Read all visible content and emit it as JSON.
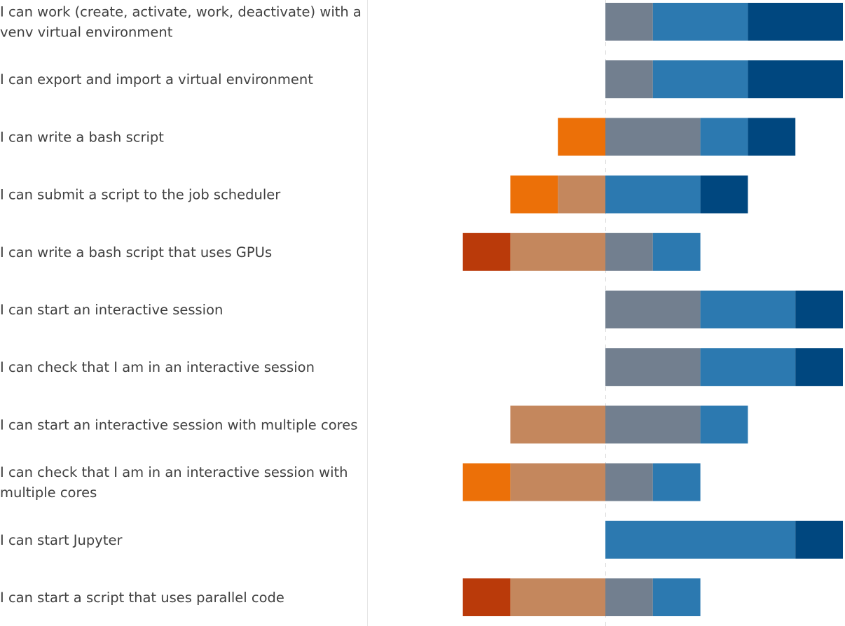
{
  "chart_data": {
    "type": "bar",
    "orientation": "horizontal",
    "stacking": "diverging",
    "categories": [
      [
        "I can work (create, activate, work, deactivate) with a",
        "venv virtual environment"
      ],
      [
        "I can export and import a virtual environment"
      ],
      [
        "I can write a bash script"
      ],
      [
        "I can submit a script to the job scheduler"
      ],
      [
        "I can write a bash script that uses GPUs"
      ],
      [
        "I can start an interactive session"
      ],
      [
        "I can check that I am in an interactive session"
      ],
      [
        "I can start an interactive session with multiple cores"
      ],
      [
        "I can check that I am in an interactive session with",
        "multiple cores"
      ],
      [
        "I can start Jupyter"
      ],
      [
        "I can start a script that uses parallel code"
      ]
    ],
    "negative_series": [
      {
        "color": "#BA3A0A",
        "values": [
          0,
          0,
          0,
          0,
          1,
          0,
          0,
          0,
          0,
          0,
          1
        ]
      },
      {
        "color": "#EC7008",
        "values": [
          0,
          0,
          1,
          1,
          0,
          0,
          0,
          0,
          1,
          0,
          0
        ]
      },
      {
        "color": "#C4875D",
        "values": [
          0,
          0,
          0,
          1,
          2,
          0,
          0,
          2,
          2,
          0,
          2
        ]
      }
    ],
    "positive_series": [
      {
        "color": "#727F8F",
        "values": [
          1,
          1,
          2,
          0,
          1,
          2,
          2,
          2,
          1,
          0,
          1
        ]
      },
      {
        "color": "#2C79B0",
        "values": [
          2,
          2,
          1,
          2,
          1,
          2,
          2,
          1,
          1,
          4,
          1
        ]
      },
      {
        "color": "#00477F",
        "values": [
          2,
          2,
          1,
          1,
          0,
          1,
          1,
          0,
          0,
          1,
          0
        ]
      }
    ],
    "xlim": [
      -3,
      5
    ]
  }
}
